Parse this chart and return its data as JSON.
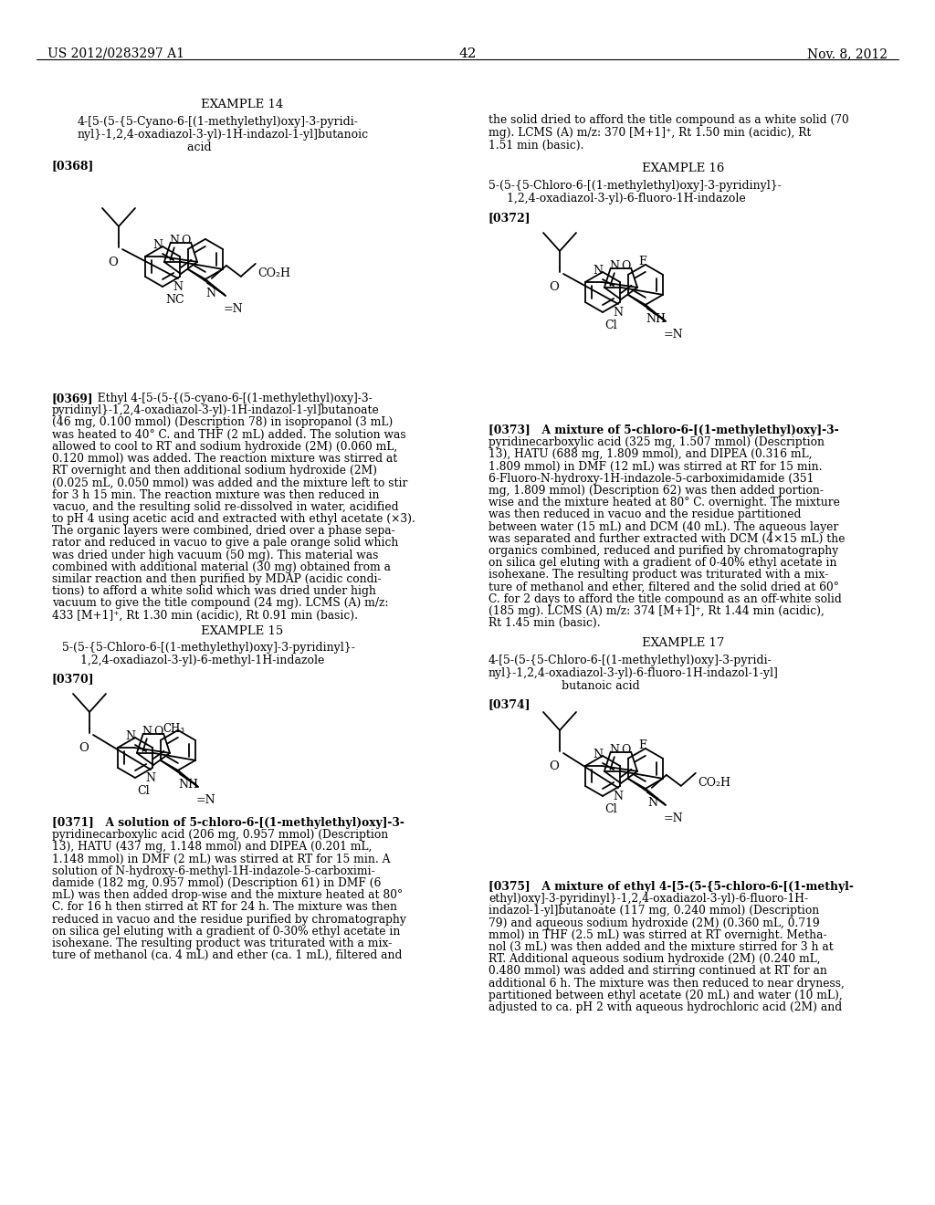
{
  "page_num": "42",
  "left_header": "US 2012/0283297 A1",
  "right_header": "Nov. 8, 2012",
  "background_color": "#ffffff",
  "text_color": "#000000"
}
